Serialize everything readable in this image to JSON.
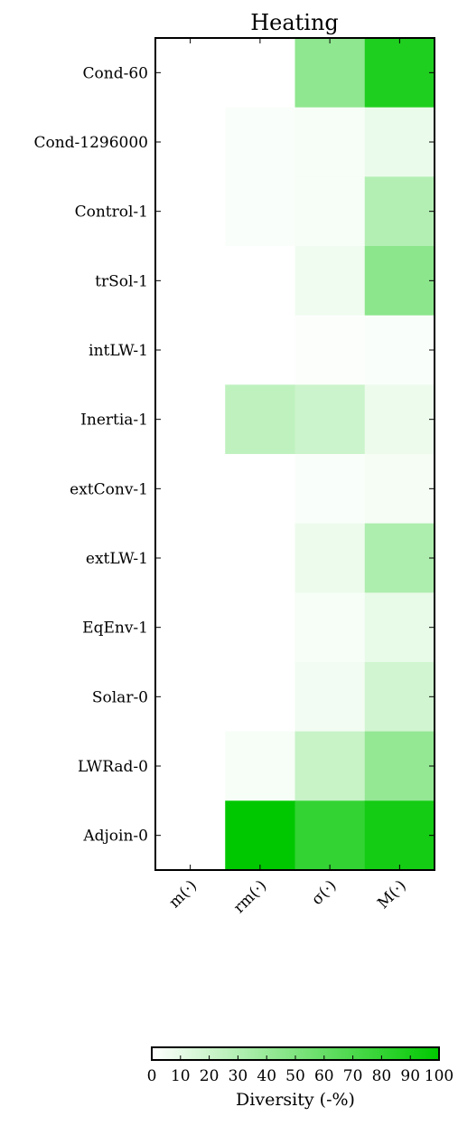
{
  "chart_data": {
    "type": "heatmap",
    "title": "Heating",
    "rows": [
      "Cond-60",
      "Cond-1296000",
      "Control-1",
      "trSol-1",
      "intLW-1",
      "Inertia-1",
      "extConv-1",
      "extLW-1",
      "EqEnv-1",
      "Solar-0",
      "LWRad-0",
      "Adjoin-0"
    ],
    "columns": [
      "m(·)",
      "rm(·)",
      "σ(·)",
      "M(·)"
    ],
    "values": [
      [
        0,
        0,
        44,
        88
      ],
      [
        0,
        2,
        3,
        8
      ],
      [
        0,
        2,
        3,
        30
      ],
      [
        0,
        0,
        6,
        45
      ],
      [
        0,
        0,
        1,
        2
      ],
      [
        0,
        25,
        20,
        7
      ],
      [
        0,
        0,
        2,
        4
      ],
      [
        0,
        0,
        7,
        32
      ],
      [
        0,
        0,
        3,
        9
      ],
      [
        0,
        0,
        5,
        18
      ],
      [
        0,
        3,
        22,
        42
      ],
      [
        0,
        100,
        80,
        92
      ]
    ],
    "colorbar": {
      "label": "Diversity (-%)",
      "min": 0,
      "max": 100,
      "ticks": [
        "0",
        "10",
        "20",
        "30",
        "40",
        "50",
        "60",
        "70",
        "80",
        "90",
        "100"
      ],
      "color_low": "#ffffff",
      "color_high": "#00c800"
    }
  }
}
